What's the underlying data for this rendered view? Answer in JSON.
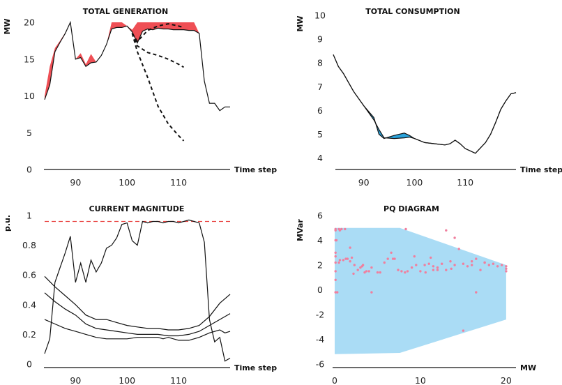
{
  "colors": {
    "generation_fill": "#ef4f55",
    "consumption_fill": "#2aa3dc",
    "pq_region": "#aadcf5",
    "pq_points": "#f07f9e",
    "limit_line": "#e8413f",
    "line": "#111111"
  },
  "chart_data": [
    {
      "type": "area",
      "title": "TOTAL GENERATION",
      "xlabel": "Time step",
      "ylabel": "MW",
      "xlim": [
        84,
        120
      ],
      "ylim": [
        0,
        20
      ],
      "xticks": [
        90,
        100,
        110
      ],
      "yticks": [
        0,
        5,
        10,
        15,
        20
      ],
      "grid": false,
      "series": [
        {
          "role": "actual",
          "x": [
            84,
            85,
            86,
            87,
            88,
            89,
            90,
            91,
            92,
            93,
            94,
            95,
            96,
            97,
            98,
            99,
            100,
            101,
            102,
            103,
            104,
            105,
            106,
            107,
            108,
            109,
            110,
            111,
            112,
            113,
            114,
            115,
            116,
            117,
            118,
            119,
            120
          ],
          "values": [
            9.5,
            11.5,
            16,
            17.3,
            18.5,
            20,
            15,
            15.2,
            14,
            14.5,
            14.6,
            15.5,
            17,
            19.1,
            19.3,
            19.3,
            19.5,
            18.7,
            17.2,
            18.8,
            19.1,
            19.0,
            19.2,
            19.1,
            19.1,
            19.0,
            19.0,
            19.0,
            18.9,
            18.9,
            18.5,
            12,
            9,
            9,
            8,
            8.5,
            8.5
          ]
        },
        {
          "role": "available",
          "x": [
            84,
            85,
            86,
            87,
            88,
            89,
            90,
            91,
            92,
            93,
            94,
            95,
            96,
            97,
            98,
            99,
            100,
            101,
            102,
            103,
            104,
            105,
            106,
            107,
            108,
            109,
            110,
            111,
            112,
            113,
            114,
            115,
            116,
            117,
            118,
            119,
            120
          ],
          "values": [
            10,
            14,
            16.5,
            17.5,
            18.6,
            20,
            15,
            15.8,
            14.3,
            15.7,
            14.6,
            15.5,
            17,
            20,
            20,
            20,
            19.5,
            19.0,
            20,
            20,
            20,
            20,
            20,
            20,
            20,
            20,
            20,
            20,
            20,
            20,
            18.5,
            12,
            9,
            9,
            8,
            8.5,
            8.5
          ]
        },
        {
          "role": "forecast",
          "x": [
            101,
            102,
            104,
            106,
            108,
            110,
            111
          ],
          "values": [
            18.5,
            17.4,
            18.9,
            19.5,
            19.8,
            19.5,
            19.3
          ]
        },
        {
          "role": "forecast",
          "x": [
            101,
            102,
            104,
            106,
            108,
            110,
            111
          ],
          "values": [
            18.5,
            16.8,
            15.9,
            15.5,
            15.0,
            14.3,
            13.9
          ]
        },
        {
          "role": "forecast",
          "x": [
            101,
            102,
            104,
            106,
            108,
            110,
            111
          ],
          "values": [
            18.5,
            16.0,
            12.5,
            8.6,
            6.2,
            4.6,
            3.9
          ]
        }
      ]
    },
    {
      "type": "area",
      "title": "TOTAL CONSUMPTION",
      "xlabel": "Time step",
      "ylabel": "MW",
      "xlim": [
        84,
        120
      ],
      "ylim": [
        4,
        10
      ],
      "xticks": [
        90,
        100,
        110
      ],
      "yticks": [
        4,
        5,
        6,
        7,
        8,
        9,
        10
      ],
      "grid": false,
      "series": [
        {
          "role": "actual",
          "x": [
            84,
            85,
            86,
            88,
            90,
            92,
            93,
            94,
            96,
            98,
            99,
            100,
            102,
            104,
            106,
            107,
            108,
            109,
            110,
            112,
            114,
            115,
            116,
            117,
            118,
            119,
            120
          ],
          "values": [
            8.35,
            7.85,
            7.55,
            6.8,
            6.2,
            5.6,
            5.2,
            4.85,
            4.82,
            4.85,
            4.88,
            4.82,
            4.65,
            4.6,
            4.55,
            4.6,
            4.75,
            4.6,
            4.4,
            4.2,
            4.65,
            5.0,
            5.5,
            6.05,
            6.4,
            6.7,
            6.75
          ]
        },
        {
          "role": "reference",
          "x": [
            84,
            85,
            86,
            88,
            90,
            92,
            93,
            94,
            96,
            98,
            99,
            100,
            102,
            104,
            106,
            107,
            108,
            109,
            110,
            112,
            114,
            115,
            116,
            117,
            118,
            119,
            120
          ],
          "values": [
            8.35,
            7.85,
            7.55,
            6.8,
            6.2,
            5.7,
            5.0,
            4.82,
            4.95,
            5.05,
            4.95,
            4.82,
            4.65,
            4.6,
            4.55,
            4.6,
            4.75,
            4.6,
            4.4,
            4.2,
            4.65,
            5.0,
            5.5,
            6.05,
            6.4,
            6.7,
            6.75
          ]
        }
      ]
    },
    {
      "type": "line",
      "title": "CURRENT MAGNITUDE",
      "xlabel": "Time step",
      "ylabel": "p.u.",
      "xlim": [
        84,
        120
      ],
      "ylim": [
        0,
        1
      ],
      "xticks": [
        90,
        100,
        110
      ],
      "yticks": [
        0,
        0.2,
        0.4,
        0.6,
        0.8,
        1
      ],
      "ytick_labels": [
        "0",
        "0.2",
        "0.4",
        "0.6",
        "0.8",
        "1"
      ],
      "limit": 0.96,
      "grid": false,
      "series": [
        {
          "x": [
            84,
            85,
            86,
            87,
            88,
            89,
            90,
            91,
            92,
            93,
            94,
            95,
            96,
            97,
            98,
            99,
            100,
            101,
            102,
            103,
            104,
            105,
            106,
            107,
            108,
            109,
            110,
            111,
            112,
            113,
            114,
            115,
            116,
            117,
            118,
            119,
            120
          ],
          "values": [
            0.07,
            0.17,
            0.55,
            0.65,
            0.75,
            0.86,
            0.55,
            0.68,
            0.55,
            0.7,
            0.62,
            0.68,
            0.78,
            0.8,
            0.85,
            0.94,
            0.95,
            0.83,
            0.8,
            0.96,
            0.95,
            0.96,
            0.96,
            0.95,
            0.96,
            0.96,
            0.95,
            0.96,
            0.97,
            0.96,
            0.95,
            0.82,
            0.3,
            0.15,
            0.18,
            0.02,
            0.04
          ]
        },
        {
          "x": [
            84,
            86,
            88,
            90,
            92,
            94,
            96,
            98,
            100,
            102,
            104,
            106,
            108,
            110,
            112,
            114,
            116,
            118,
            120
          ],
          "values": [
            0.59,
            0.52,
            0.46,
            0.4,
            0.33,
            0.3,
            0.3,
            0.28,
            0.26,
            0.25,
            0.24,
            0.24,
            0.23,
            0.23,
            0.24,
            0.26,
            0.32,
            0.41,
            0.47
          ]
        },
        {
          "x": [
            84,
            86,
            88,
            90,
            92,
            94,
            96,
            98,
            100,
            102,
            104,
            106,
            108,
            110,
            112,
            114,
            116,
            118,
            120
          ],
          "values": [
            0.48,
            0.42,
            0.37,
            0.33,
            0.27,
            0.24,
            0.23,
            0.22,
            0.21,
            0.2,
            0.2,
            0.2,
            0.19,
            0.19,
            0.2,
            0.22,
            0.26,
            0.3,
            0.34
          ]
        },
        {
          "x": [
            84,
            86,
            88,
            90,
            92,
            94,
            96,
            98,
            99,
            100,
            102,
            104,
            106,
            107,
            108,
            110,
            112,
            114,
            116,
            118,
            119,
            120
          ],
          "values": [
            0.3,
            0.27,
            0.24,
            0.22,
            0.2,
            0.18,
            0.17,
            0.17,
            0.17,
            0.17,
            0.18,
            0.18,
            0.18,
            0.17,
            0.18,
            0.16,
            0.16,
            0.18,
            0.21,
            0.23,
            0.21,
            0.22
          ]
        }
      ]
    },
    {
      "type": "scatter",
      "title": "PQ DIAGRAM",
      "xlabel": "MW",
      "ylabel": "MVar",
      "xlim": [
        0,
        20.5
      ],
      "ylim": [
        -6,
        6
      ],
      "xticks": [
        0,
        10,
        20
      ],
      "yticks": [
        -6,
        -4,
        -2,
        0,
        2,
        4,
        6
      ],
      "grid": false,
      "region": {
        "x": [
          0,
          7.6,
          20,
          20,
          7.6,
          0
        ],
        "y": [
          5,
          5,
          2.0,
          -2.4,
          -5.1,
          -5.2
        ]
      },
      "points": {
        "x": [
          0.1,
          0.1,
          0.1,
          0.1,
          0.1,
          0.1,
          0.1,
          0.1,
          0.1,
          0.2,
          0.3,
          0.5,
          0.6,
          0.6,
          0.5,
          1,
          1.3,
          1.5,
          2,
          2.2,
          2.7,
          3,
          3.2,
          3.3,
          3.5,
          3.7,
          4,
          4.3,
          0.8,
          1.8,
          2.3,
          1.2,
          5,
          5.3,
          5.8,
          6.2,
          6.6,
          7,
          7.4,
          7.8,
          8.2,
          8.5,
          9,
          9.5,
          10,
          10.5,
          11,
          11.5,
          12,
          12.5,
          13,
          13.5,
          14,
          14.5,
          15,
          15.5,
          16,
          16.5,
          17,
          17.5,
          18,
          18.5,
          19,
          19.5,
          20,
          20,
          20,
          16.5,
          15,
          11.5,
          13,
          14,
          4.3,
          6.8,
          9.3,
          11.2,
          12,
          13.6,
          16,
          17.5,
          1.8,
          8.3,
          10.6
        ],
        "y": [
          4.9,
          4.8,
          4.0,
          3.0,
          2.7,
          2.2,
          1.5,
          0.8,
          -0.2,
          4.0,
          -0.2,
          4.9,
          4.8,
          2.4,
          2.2,
          2.4,
          2.5,
          2.5,
          2.6,
          1.3,
          1.6,
          1.8,
          1.9,
          2.0,
          1.4,
          1.5,
          1.5,
          1.8,
          4.9,
          2.3,
          2.0,
          4.9,
          1.4,
          1.4,
          2.2,
          2.5,
          3.0,
          2.5,
          1.6,
          1.5,
          1.4,
          1.5,
          1.8,
          2.0,
          1.5,
          2.0,
          2.1,
          1.9,
          1.6,
          2.1,
          1.6,
          2.3,
          2.0,
          3.3,
          2.1,
          1.9,
          2.3,
          2.5,
          1.6,
          2.2,
          2.0,
          2.1,
          1.9,
          2.0,
          1.9,
          1.7,
          1.5,
          -0.2,
          -3.3,
          1.6,
          4.8,
          4.2,
          -0.2,
          2.5,
          2.7,
          2.6,
          1.8,
          1.7,
          2.0,
          2.2,
          3.4,
          4.9,
          1.4
        ]
      }
    }
  ]
}
